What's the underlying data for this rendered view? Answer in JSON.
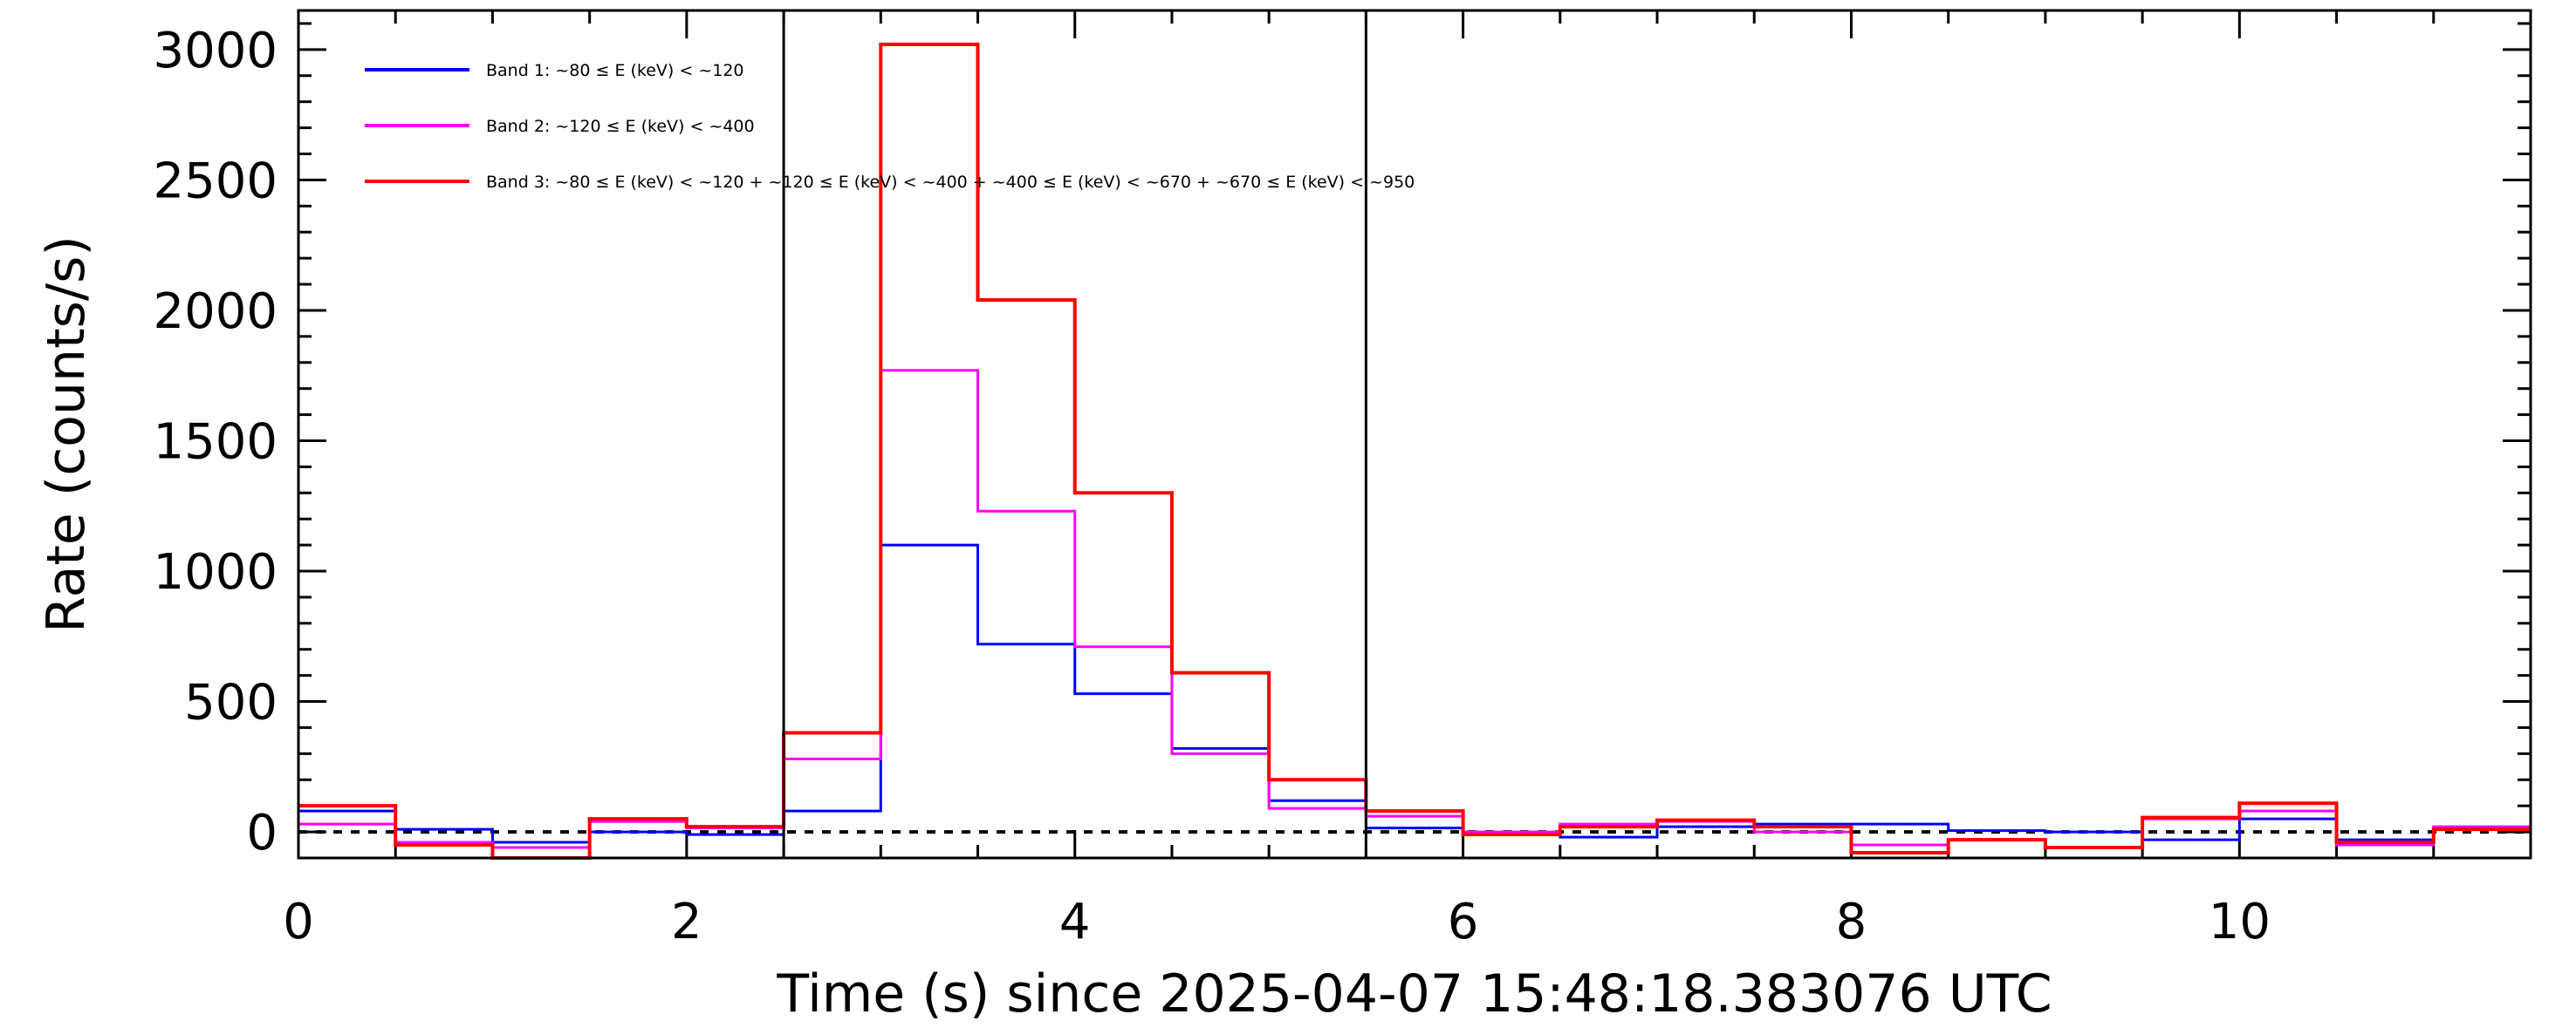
{
  "chart_data": {
    "type": "line",
    "step": true,
    "xlabel": "Time (s) since 2025-04-07 15:48:18.383076 UTC",
    "ylabel": "Rate (counts/s)",
    "xlim": [
      0,
      11.5
    ],
    "ylim": [
      -100,
      3150
    ],
    "x_ticks": [
      0,
      2,
      4,
      6,
      8,
      10
    ],
    "x_tick_labels": [
      "0",
      "2",
      "4",
      "6",
      "8",
      "10"
    ],
    "y_ticks": [
      0,
      500,
      1000,
      1500,
      2000,
      2500,
      3000
    ],
    "y_tick_labels": [
      "0",
      "500",
      "1000",
      "1500",
      "2000",
      "2500",
      "3000"
    ],
    "grid": false,
    "legend_position": "top-left",
    "vertical_markers": [
      2.5,
      5.5
    ],
    "zero_line": 0,
    "bin_edges": [
      0,
      0.5,
      1,
      1.5,
      2,
      2.5,
      3,
      3.5,
      4,
      4.5,
      5,
      5.5,
      6,
      6.5,
      7,
      7.5,
      8,
      8.5,
      9,
      9.5,
      10,
      10.5,
      11,
      11.5
    ],
    "series": [
      {
        "name": "Band 1: ~80 ≤ E (keV) < ~120",
        "color": "#0000ff",
        "values": [
          80,
          10,
          -40,
          0,
          -10,
          80,
          1100,
          720,
          530,
          320,
          120,
          15,
          -10,
          -20,
          20,
          30,
          30,
          5,
          0,
          -30,
          50,
          -30,
          10
        ]
      },
      {
        "name": "Band 2: ~120 ≤ E (keV) < ~400",
        "color": "#ff00ff",
        "values": [
          30,
          -40,
          -60,
          40,
          15,
          280,
          1770,
          1230,
          710,
          300,
          90,
          60,
          0,
          30,
          40,
          0,
          -50,
          -30,
          -60,
          50,
          80,
          -50,
          20
        ]
      },
      {
        "name": "Band 3: ~80 ≤ E (keV) < ~120 + ~120 ≤ E (keV) < ~400 + ~400 ≤ E (keV) < ~670 + ~670 ≤ E (keV) < ~950",
        "color": "#ff0000",
        "values": [
          100,
          -50,
          -100,
          50,
          20,
          380,
          3020,
          2040,
          1300,
          610,
          200,
          80,
          -10,
          20,
          45,
          20,
          -80,
          -30,
          -60,
          55,
          110,
          -40,
          10
        ]
      }
    ]
  }
}
